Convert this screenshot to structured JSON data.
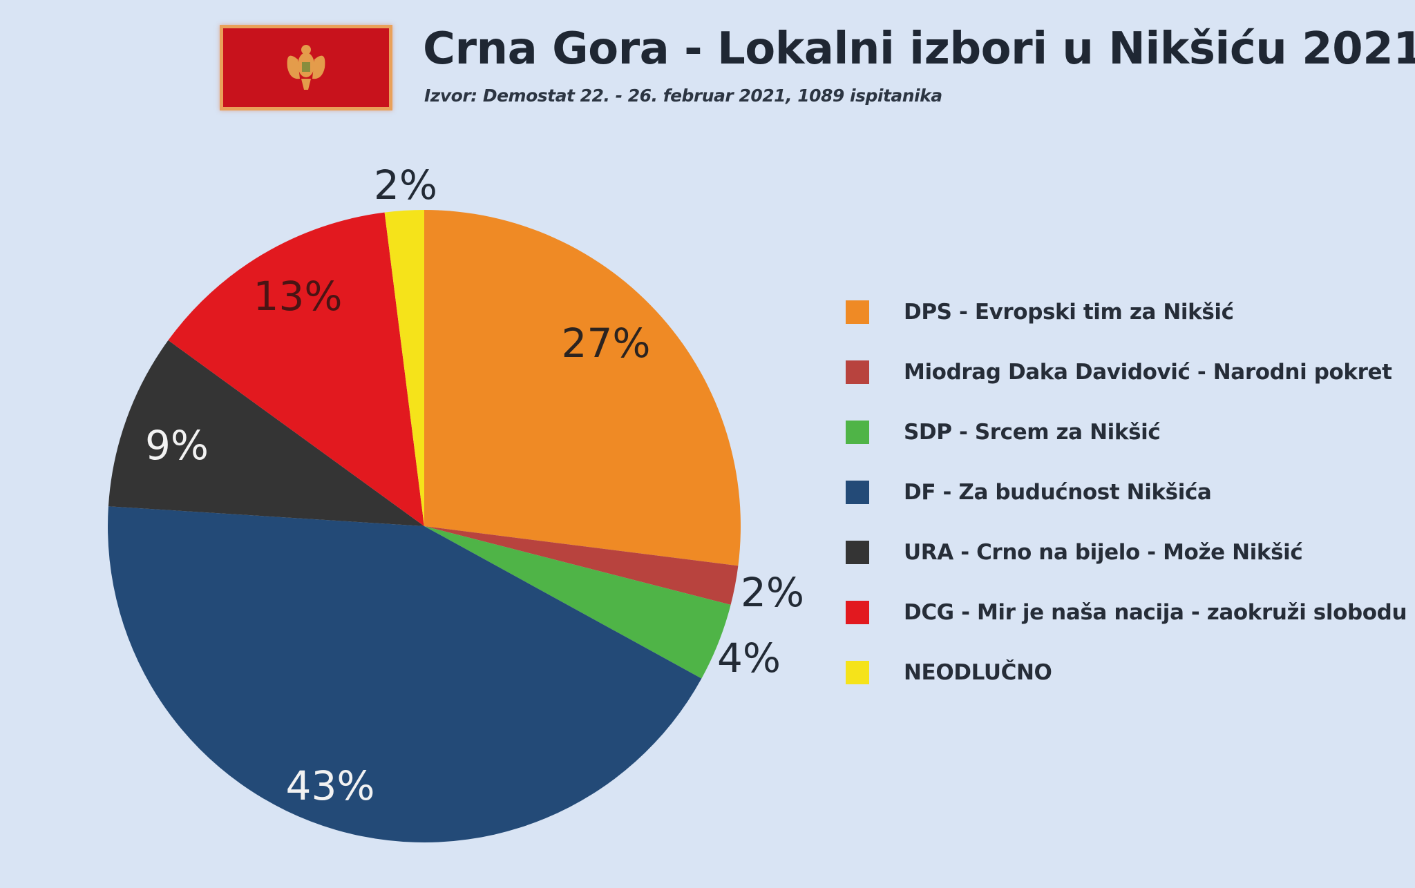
{
  "header": {
    "title": "Crna Gora - Lokalni izbori u Nikšiću 2021",
    "subtitle": "Izvor: Demostat 22. - 26. februar 2021, 1089 ispitanika",
    "flag_icon": "montenegro-flag-icon"
  },
  "colors": {
    "background": "#d9e4f4",
    "DPS": "#ef8a25",
    "Miodrag": "#b8433e",
    "SDP": "#4fb447",
    "DF": "#234a77",
    "URA": "#343434",
    "DCG": "#e2191f",
    "NEODLUCNO": "#f5e31a"
  },
  "chart_data": {
    "type": "pie",
    "title": "Crna Gora - Lokalni izbori u Nikšiću 2021",
    "subtitle": "Izvor: Demostat 22. - 26. februar 2021, 1089 ispitanika",
    "start_angle": "12 o'clock",
    "direction": "clockwise",
    "legend_position": "right",
    "categories": [
      "DPS - Evropski tim za Nikšić",
      "Miodrag Daka Davidović - Narodni pokret",
      "SDP - Srcem za Nikšić",
      "DF - Za budućnost Nikšića",
      "URA - Crno na bijelo - Može Nikšić",
      "DCG - Mir je naša nacija - zaokruži slobodu",
      "NEODLUČNO"
    ],
    "values": [
      27,
      2,
      4,
      43,
      9,
      13,
      2
    ],
    "labels": [
      "27%",
      "2%",
      "4%",
      "43%",
      "9%",
      "13%",
      "2%"
    ],
    "colors": [
      "#ef8a25",
      "#b8433e",
      "#4fb447",
      "#234a77",
      "#343434",
      "#e2191f",
      "#f5e31a"
    ]
  },
  "slices": [
    {
      "label": "27%",
      "value": 27,
      "color": "#ef8a25",
      "text_color": "#2b2320"
    },
    {
      "label": "2%",
      "value": 2,
      "color": "#b8433e",
      "text_color": "#222a35"
    },
    {
      "label": "4%",
      "value": 4,
      "color": "#4fb447",
      "text_color": "#222a35"
    },
    {
      "label": "43%",
      "value": 43,
      "color": "#234a77",
      "text_color": "#f2f2f2"
    },
    {
      "label": "9%",
      "value": 9,
      "color": "#343434",
      "text_color": "#f2f2f2"
    },
    {
      "label": "13%",
      "value": 13,
      "color": "#e2191f",
      "text_color": "#4a1414"
    },
    {
      "label": "2%",
      "value": 2,
      "color": "#f5e31a",
      "text_color": "#222a35"
    }
  ],
  "legend": {
    "items": [
      {
        "label": "DPS - Evropski tim za Nikšić",
        "color": "#ef8a25"
      },
      {
        "label": "Miodrag Daka Davidović - Narodni pokret",
        "color": "#b8433e"
      },
      {
        "label": "SDP - Srcem za Nikšić",
        "color": "#4fb447"
      },
      {
        "label": "DF - Za budućnost Nikšića",
        "color": "#234a77"
      },
      {
        "label": "URA - Crno na bijelo - Može Nikšić",
        "color": "#343434"
      },
      {
        "label": "DCG - Mir je naša nacija - zaokruži slobodu",
        "color": "#e2191f"
      },
      {
        "label": "NEODLUČNO",
        "color": "#f5e31a"
      }
    ]
  }
}
